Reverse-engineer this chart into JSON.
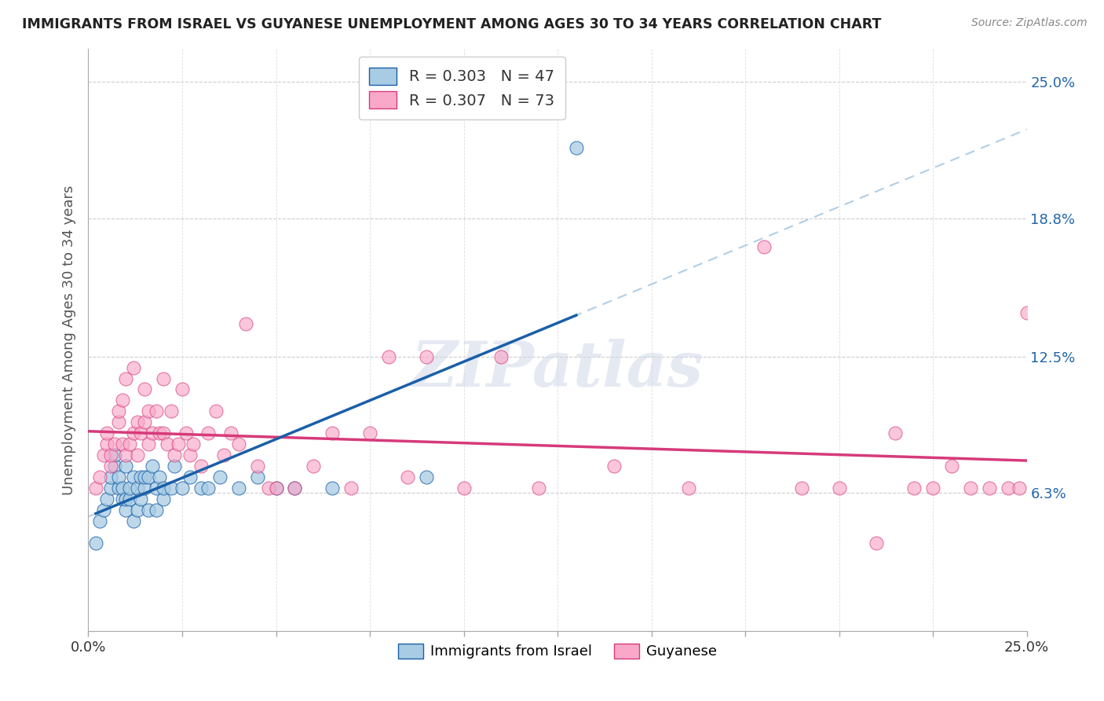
{
  "title": "IMMIGRANTS FROM ISRAEL VS GUYANESE UNEMPLOYMENT AMONG AGES 30 TO 34 YEARS CORRELATION CHART",
  "source": "Source: ZipAtlas.com",
  "ylabel": "Unemployment Among Ages 30 to 34 years",
  "xlim": [
    0.0,
    0.25
  ],
  "ylim": [
    0.0,
    0.265
  ],
  "ytick_vals": [
    0.0,
    0.063,
    0.125,
    0.188,
    0.25
  ],
  "ytick_labels": [
    "",
    "6.3%",
    "12.5%",
    "18.8%",
    "25.0%"
  ],
  "xticks": [
    0.0,
    0.025,
    0.05,
    0.075,
    0.1,
    0.125,
    0.15,
    0.175,
    0.2,
    0.225,
    0.25
  ],
  "xtick_labels": [
    "0.0%",
    "",
    "",
    "",
    "",
    "",
    "",
    "",
    "",
    "",
    "25.0%"
  ],
  "legend_r1": "R = 0.303",
  "legend_n1": "N = 47",
  "legend_r2": "R = 0.307",
  "legend_n2": "N = 73",
  "watermark": "ZIPatlas",
  "color_israel": "#a8cce4",
  "color_guyanese": "#f9a8c9",
  "color_line_israel": "#1a5fa8",
  "color_line_guyanese": "#d63a7a",
  "color_line_dashed": "#b0cfe8",
  "israel_x": [
    0.002,
    0.003,
    0.004,
    0.005,
    0.006,
    0.006,
    0.007,
    0.007,
    0.008,
    0.008,
    0.009,
    0.009,
    0.01,
    0.01,
    0.01,
    0.011,
    0.011,
    0.012,
    0.012,
    0.013,
    0.013,
    0.014,
    0.014,
    0.015,
    0.015,
    0.016,
    0.016,
    0.017,
    0.018,
    0.018,
    0.019,
    0.02,
    0.02,
    0.022,
    0.023,
    0.025,
    0.027,
    0.03,
    0.032,
    0.035,
    0.04,
    0.045,
    0.05,
    0.055,
    0.065,
    0.09,
    0.13
  ],
  "israel_y": [
    0.04,
    0.05,
    0.055,
    0.06,
    0.065,
    0.07,
    0.075,
    0.08,
    0.065,
    0.07,
    0.06,
    0.065,
    0.055,
    0.06,
    0.075,
    0.06,
    0.065,
    0.05,
    0.07,
    0.055,
    0.065,
    0.06,
    0.07,
    0.065,
    0.07,
    0.055,
    0.07,
    0.075,
    0.055,
    0.065,
    0.07,
    0.06,
    0.065,
    0.065,
    0.075,
    0.065,
    0.07,
    0.065,
    0.065,
    0.07,
    0.065,
    0.07,
    0.065,
    0.065,
    0.065,
    0.07,
    0.22
  ],
  "guyanese_x": [
    0.002,
    0.003,
    0.004,
    0.005,
    0.005,
    0.006,
    0.006,
    0.007,
    0.008,
    0.008,
    0.009,
    0.009,
    0.01,
    0.01,
    0.011,
    0.012,
    0.012,
    0.013,
    0.013,
    0.014,
    0.015,
    0.015,
    0.016,
    0.016,
    0.017,
    0.018,
    0.019,
    0.02,
    0.02,
    0.021,
    0.022,
    0.023,
    0.024,
    0.025,
    0.026,
    0.027,
    0.028,
    0.03,
    0.032,
    0.034,
    0.036,
    0.038,
    0.04,
    0.042,
    0.045,
    0.048,
    0.05,
    0.055,
    0.06,
    0.065,
    0.07,
    0.075,
    0.08,
    0.085,
    0.09,
    0.1,
    0.11,
    0.12,
    0.14,
    0.16,
    0.18,
    0.19,
    0.2,
    0.21,
    0.215,
    0.22,
    0.225,
    0.23,
    0.235,
    0.24,
    0.245,
    0.248,
    0.25
  ],
  "guyanese_y": [
    0.065,
    0.07,
    0.08,
    0.085,
    0.09,
    0.075,
    0.08,
    0.085,
    0.095,
    0.1,
    0.085,
    0.105,
    0.08,
    0.115,
    0.085,
    0.09,
    0.12,
    0.08,
    0.095,
    0.09,
    0.095,
    0.11,
    0.085,
    0.1,
    0.09,
    0.1,
    0.09,
    0.09,
    0.115,
    0.085,
    0.1,
    0.08,
    0.085,
    0.11,
    0.09,
    0.08,
    0.085,
    0.075,
    0.09,
    0.1,
    0.08,
    0.09,
    0.085,
    0.14,
    0.075,
    0.065,
    0.065,
    0.065,
    0.075,
    0.09,
    0.065,
    0.09,
    0.125,
    0.07,
    0.125,
    0.065,
    0.125,
    0.065,
    0.075,
    0.065,
    0.175,
    0.065,
    0.065,
    0.04,
    0.09,
    0.065,
    0.065,
    0.075,
    0.065,
    0.065,
    0.065,
    0.065,
    0.145
  ]
}
